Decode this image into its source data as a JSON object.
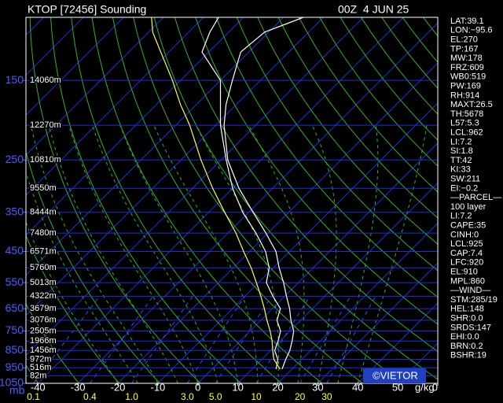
{
  "header": {
    "title": "KTOP [72456] Sounding",
    "time": "00Z  4 JUN 25"
  },
  "chart_data": {
    "type": "skewt",
    "ylim": [
      100,
      1050
    ],
    "log_y": true,
    "pressure_ticks": [
      150,
      250,
      350,
      450,
      550,
      650,
      750,
      850,
      950,
      1050
    ],
    "pressure_unit": "mb",
    "heights": [
      {
        "pressure": 150,
        "label": "14060m"
      },
      {
        "pressure": 200,
        "label": "12270m"
      },
      {
        "pressure": 250,
        "label": "10810m"
      },
      {
        "pressure": 300,
        "label": "9550m"
      },
      {
        "pressure": 350,
        "label": "8444m"
      },
      {
        "pressure": 400,
        "label": "7480m"
      },
      {
        "pressure": 450,
        "label": "6571m"
      },
      {
        "pressure": 500,
        "label": "5760m"
      },
      {
        "pressure": 550,
        "label": "5013m"
      },
      {
        "pressure": 600,
        "label": "4322m"
      },
      {
        "pressure": 650,
        "label": "3679m"
      },
      {
        "pressure": 700,
        "label": "3076m"
      },
      {
        "pressure": 750,
        "label": "2505m"
      },
      {
        "pressure": 800,
        "label": "1966m"
      },
      {
        "pressure": 850,
        "label": "1456m"
      },
      {
        "pressure": 900,
        "label": "972m"
      },
      {
        "pressure": 950,
        "label": "516m"
      },
      {
        "pressure": 1000,
        "label": "82m"
      }
    ],
    "xlim": [
      -43,
      60
    ],
    "xticks": [
      -40,
      -30,
      -20,
      -10,
      0,
      10,
      20,
      30,
      40,
      50,
      {
        "value": 60,
        "label": "0"
      }
    ],
    "mixing_ratio_ticks": [
      0.1,
      0.4,
      {
        "value": 1,
        "label": "1.0"
      },
      {
        "value": 3,
        "label": "3.0"
      },
      {
        "value": 5,
        "label": "5.0"
      },
      10,
      20,
      30
    ],
    "mixing_ratio_unit": "g/kg",
    "levels": [
      958,
      900,
      850,
      800,
      750,
      700,
      650,
      600,
      550,
      500,
      450,
      400,
      350,
      300,
      250,
      200,
      175,
      150,
      125,
      110,
      100
    ],
    "series": [
      {
        "color": "#ffffff",
        "values": [
          17.5,
          16,
          14.8,
          13,
          10.9,
          7.5,
          4.3,
          0.4,
          -3.7,
          -8.5,
          -13.4,
          -20.5,
          -28.9,
          -38.4,
          -48.3,
          -57.9,
          -62.6,
          -67,
          -72,
          -71,
          -65
        ]
      },
      {
        "color": "#ffffff",
        "values": [
          16,
          14,
          11,
          9.5,
          7.6,
          4,
          2,
          -3,
          -8,
          -11,
          -16,
          -23,
          -31.5,
          -40,
          -48.7,
          -58.8,
          -64,
          -70,
          -81.7,
          -84.7,
          -86.2
        ]
      },
      {
        "color": "#ffff40",
        "values": [
          17,
          13,
          10.5,
          8,
          5,
          1.5,
          -2,
          -6,
          -10.5,
          -15.5,
          -21.5,
          -28,
          -36,
          -45,
          -55,
          -66.5,
          -74,
          -82,
          -92,
          -99,
          -103
        ]
      }
    ]
  },
  "stats": [
    "LAT:39.1",
    "LON:−95.6",
    "EL:270",
    "TP:167",
    "MW:178",
    "FRZ:609",
    "WB0:519",
    "PW:169",
    "RH:914",
    "MAXT:26.5",
    "TH:5678",
    "L57:5.3",
    "LCL:962",
    "LI:7.2",
    "SI:1.8",
    "TT:42",
    "KI:33",
    "SW:211",
    "EI:−0.2",
    "—PARCEL—",
    "100 layer",
    "LI:7.2",
    "CAPE:35",
    "CINH:0",
    "LCL:925",
    "CAP:7.4",
    "LFC:920",
    "EL:910",
    "MPL:860",
    "—WIND—",
    "STM:285/19",
    "HEL:148",
    "SHR:0.0",
    "SRDS:147",
    "EHI:0.0",
    "BRN:0.2",
    "BSHR:19"
  ],
  "credit": "©VIETOR"
}
